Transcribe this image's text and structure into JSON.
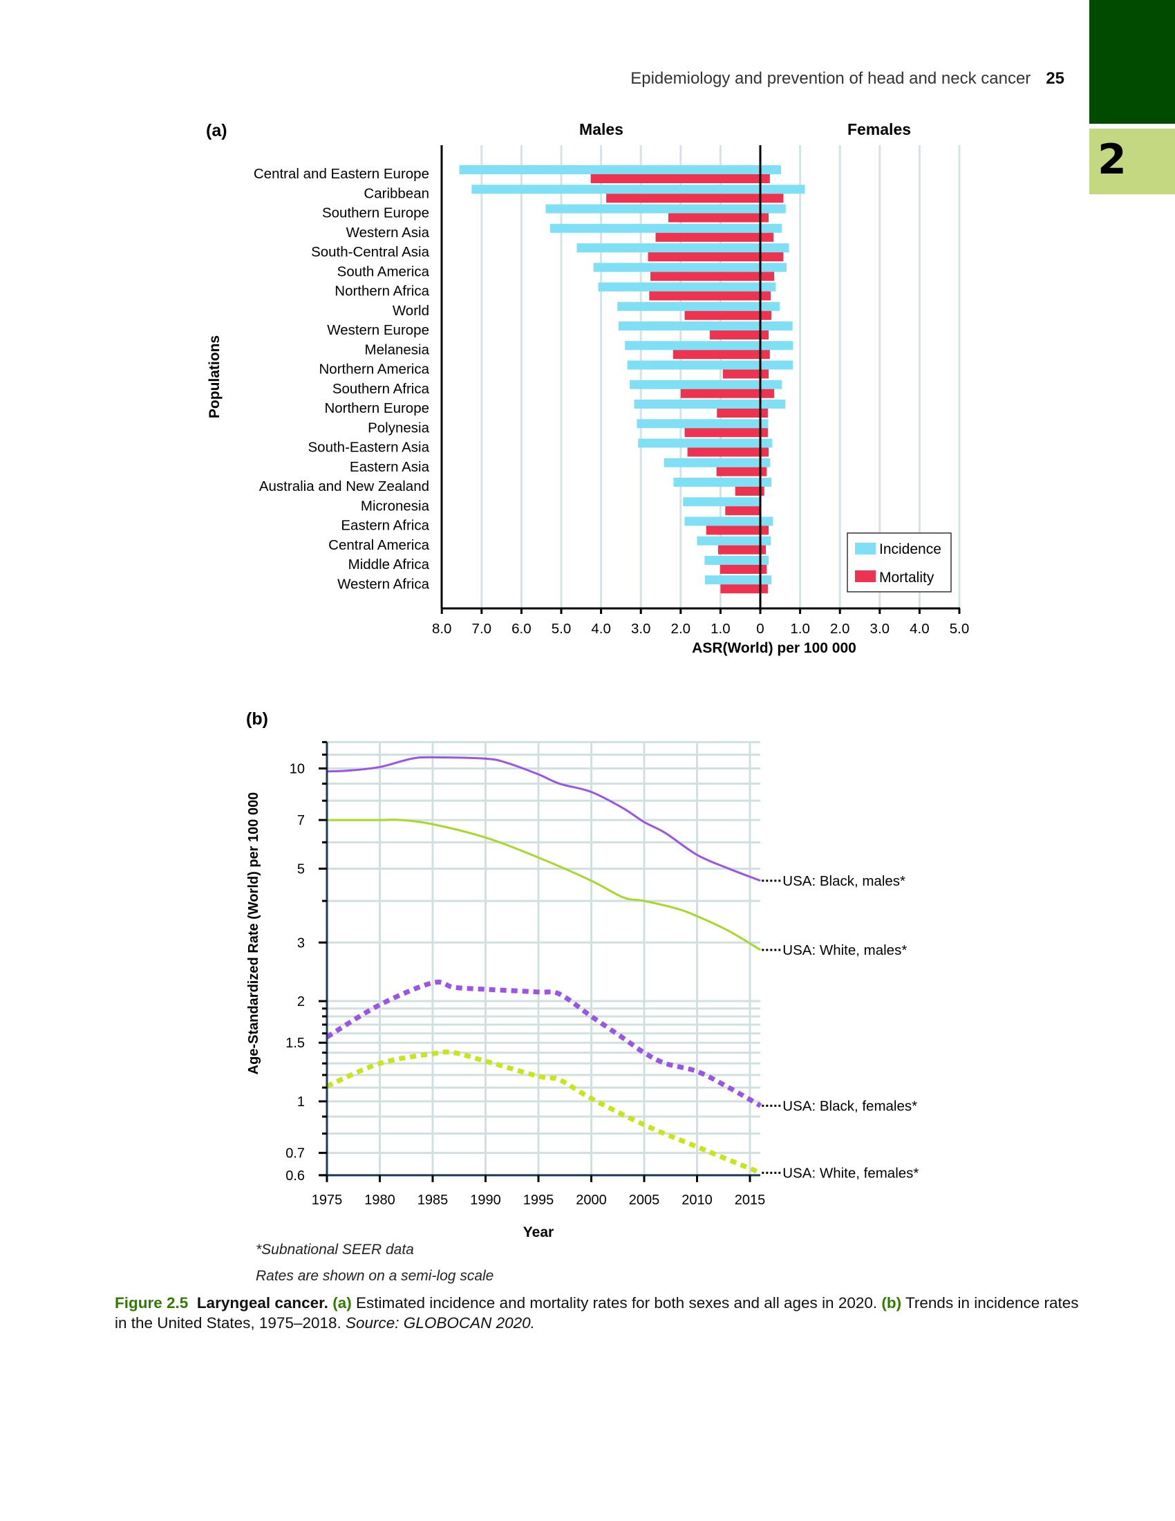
{
  "header": {
    "running_title": "Epidemiology and prevention of head and neck cancer",
    "page_number": "25",
    "chapter_tab": "2",
    "colors": {
      "tab_dark": "#004b00",
      "tab_light": "#c3d880"
    }
  },
  "chart_data": [
    {
      "id": "a",
      "panel_label": "(a)",
      "type": "bar",
      "orientation": "horizontal-butterfly",
      "left_title": "Males",
      "right_title": "Females",
      "ylabel": "Populations",
      "xlabel": "ASR(World) per 100 000",
      "xlim_males": [
        0,
        8.0
      ],
      "xlim_females": [
        0,
        5.0
      ],
      "x_ticks": [
        "8.0",
        "7.0",
        "6.0",
        "5.0",
        "4.0",
        "3.0",
        "2.0",
        "1.0",
        "0",
        "1.0",
        "2.0",
        "3.0",
        "4.0",
        "5.0"
      ],
      "grid": true,
      "legend": {
        "position": "bottom-right",
        "entries": [
          "Incidence",
          "Mortality"
        ]
      },
      "colors": {
        "Incidence": "#7fe0f5",
        "Mortality": "#ee3350"
      },
      "categories": [
        "Central and Eastern Europe",
        "Caribbean",
        "Southern Europe",
        "Western Asia",
        "South-Central Asia",
        "South America",
        "Northern Africa",
        "World",
        "Western Europe",
        "Melanesia",
        "Northern America",
        "Southern Africa",
        "Northern Europe",
        "Polynesia",
        "South-Eastern Asia",
        "Eastern Asia",
        "Australia and New Zealand",
        "Micronesia",
        "Eastern Africa",
        "Central America",
        "Middle Africa",
        "Western Africa"
      ],
      "series": [
        {
          "name": "Incidence, males",
          "values": [
            7.56,
            7.25,
            5.39,
            5.28,
            4.61,
            4.19,
            4.07,
            3.59,
            3.56,
            3.4,
            3.34,
            3.28,
            3.17,
            3.1,
            3.07,
            2.42,
            2.18,
            1.94,
            1.9,
            1.59,
            1.4,
            1.39
          ]
        },
        {
          "name": "Mortality, males",
          "values": [
            4.26,
            3.87,
            2.31,
            2.63,
            2.82,
            2.76,
            2.79,
            1.9,
            1.27,
            2.19,
            0.94,
            2.0,
            1.09,
            1.9,
            1.83,
            1.1,
            0.63,
            0.88,
            1.36,
            1.06,
            1.01,
            1.0
          ]
        },
        {
          "name": "Incidence, females",
          "values": [
            0.52,
            1.12,
            0.64,
            0.54,
            0.72,
            0.66,
            0.39,
            0.49,
            0.81,
            0.82,
            0.82,
            0.54,
            0.63,
            0.2,
            0.3,
            0.25,
            0.28,
            0.0,
            0.32,
            0.26,
            0.21,
            0.28
          ]
        },
        {
          "name": "Mortality, females",
          "values": [
            0.24,
            0.58,
            0.21,
            0.33,
            0.58,
            0.35,
            0.26,
            0.28,
            0.21,
            0.24,
            0.21,
            0.35,
            0.19,
            0.19,
            0.21,
            0.16,
            0.1,
            0.0,
            0.21,
            0.14,
            0.16,
            0.19
          ]
        }
      ]
    },
    {
      "id": "b",
      "panel_label": "(b)",
      "type": "line",
      "yscale": "log",
      "ylabel": "Age-Standardized Rate (World) per 100 000",
      "xlabel": "Year",
      "xlim": [
        1975,
        2016
      ],
      "ylim": [
        0.6,
        12
      ],
      "x_ticks": [
        "1975",
        "1980",
        "1985",
        "1990",
        "1995",
        "2000",
        "2005",
        "2010",
        "2015"
      ],
      "y_ticks": [
        10,
        7,
        5,
        3,
        2,
        1.5,
        1,
        0.7,
        0.6
      ],
      "y_tick_labels": [
        "10",
        "7",
        "5",
        "3",
        "2",
        "1.5",
        "1",
        "0.7",
        "0.6"
      ],
      "y_minor_grid": [
        12,
        11,
        9,
        8,
        6,
        4,
        1.9,
        1.8,
        1.7,
        1.6,
        1.4,
        1.3,
        1.2,
        1.1,
        0.9,
        0.8
      ],
      "grid": true,
      "series": [
        {
          "name": "USA: Black, males*",
          "style": "solid",
          "color": "#9b55e6",
          "x": [
            1975,
            1977,
            1980,
            1983,
            1985,
            1990,
            1992,
            1995,
            1997,
            2000,
            2003,
            2005,
            2007,
            2010,
            2013,
            2016
          ],
          "y": [
            9.8,
            9.85,
            10.1,
            10.7,
            10.8,
            10.7,
            10.4,
            9.6,
            9.0,
            8.5,
            7.6,
            6.9,
            6.4,
            5.5,
            5.0,
            4.6
          ]
        },
        {
          "name": "USA: White, males*",
          "style": "solid",
          "color": "#a6d92a",
          "x": [
            1975,
            1980,
            1982,
            1985,
            1990,
            1995,
            2000,
            2003,
            2005,
            2008,
            2010,
            2013,
            2016
          ],
          "y": [
            7.0,
            7.0,
            7.0,
            6.8,
            6.2,
            5.4,
            4.6,
            4.1,
            4.0,
            3.8,
            3.6,
            3.25,
            2.85
          ]
        },
        {
          "name": "USA: Black, females*",
          "style": "dashed",
          "color": "#9b55e6",
          "x": [
            1975,
            1980,
            1985,
            1987,
            1990,
            1995,
            1997,
            2000,
            2003,
            2005,
            2007,
            2010,
            2013,
            2016
          ],
          "y": [
            1.56,
            1.95,
            2.27,
            2.2,
            2.17,
            2.13,
            2.1,
            1.8,
            1.55,
            1.4,
            1.3,
            1.23,
            1.1,
            0.97
          ]
        },
        {
          "name": "USA: White, females*",
          "style": "dashed",
          "color": "#c8e51a",
          "x": [
            1975,
            1980,
            1985,
            1987,
            1990,
            1995,
            1997,
            2000,
            2005,
            2010,
            2016
          ],
          "y": [
            1.11,
            1.3,
            1.39,
            1.4,
            1.32,
            1.19,
            1.16,
            1.02,
            0.85,
            0.73,
            0.61
          ]
        }
      ]
    }
  ],
  "footnotes": {
    "seer": "*Subnational SEER data",
    "semilog": "Rates are shown on a semi-log scale"
  },
  "caption": {
    "figure_label": "Figure 2.5",
    "title": "Laryngeal cancer.",
    "part_a_label": "(a)",
    "part_a_text": "Estimated incidence and mortality rates for both sexes and all ages in 2020.",
    "part_b_label": "(b)",
    "part_b_text": "Trends in incidence rates in the United States, 1975–2018.",
    "source": "Source: GLOBOCAN 2020."
  }
}
